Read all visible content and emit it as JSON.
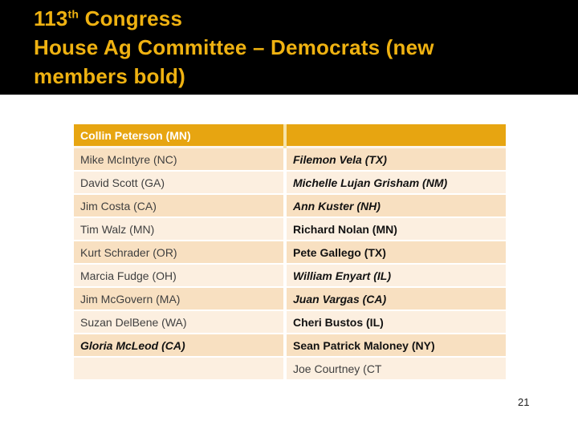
{
  "colors": {
    "header_bg": "#000000",
    "title": "#efb211",
    "table_header_bg": "#e7a511",
    "row_dark": "#f8e0c1",
    "row_light": "#fcefe0"
  },
  "title": {
    "number": "113",
    "ordinal_suffix": "th",
    "line1_rest": " Congress",
    "line2": "House Ag Committee – Democrats (new",
    "line3": "members bold)"
  },
  "table": {
    "header": {
      "left": "Collin Peterson (MN)",
      "right": ""
    },
    "rows": [
      {
        "left": {
          "text": "Mike McIntyre (NC)",
          "style": "regular"
        },
        "right": {
          "text": "Filemon Vela (TX)",
          "style": "bold-italic"
        }
      },
      {
        "left": {
          "text": "David Scott (GA)",
          "style": "regular"
        },
        "right": {
          "text": "Michelle Lujan Grisham (NM)",
          "style": "bold-italic"
        }
      },
      {
        "left": {
          "text": "Jim Costa (CA)",
          "style": "regular"
        },
        "right": {
          "text": "Ann Kuster (NH)",
          "style": "bold-italic"
        }
      },
      {
        "left": {
          "text": "Tim Walz (MN)",
          "style": "regular"
        },
        "right": {
          "text": "Richard Nolan (MN)",
          "style": "bold"
        }
      },
      {
        "left": {
          "text": "Kurt Schrader (OR)",
          "style": "regular"
        },
        "right": {
          "text": "Pete Gallego (TX)",
          "style": "bold"
        }
      },
      {
        "left": {
          "text": "Marcia Fudge (OH)",
          "style": "regular"
        },
        "right": {
          "text": "William Enyart (IL)",
          "style": "bold-italic"
        }
      },
      {
        "left": {
          "text": "Jim McGovern (MA)",
          "style": "regular"
        },
        "right": {
          "text": "Juan Vargas (CA)",
          "style": "bold-italic"
        }
      },
      {
        "left": {
          "text": "Suzan DelBene (WA)",
          "style": "regular"
        },
        "right": {
          "text": "Cheri Bustos (IL)",
          "style": "bold"
        }
      },
      {
        "left": {
          "text": "Gloria McLeod (CA)",
          "style": "bold-italic"
        },
        "right": {
          "text": "Sean Patrick Maloney (NY)",
          "style": "bold"
        }
      },
      {
        "left": {
          "text": "",
          "style": "regular"
        },
        "right": {
          "text": "Joe Courtney (CT",
          "style": "regular"
        }
      }
    ]
  },
  "page_number": "21"
}
